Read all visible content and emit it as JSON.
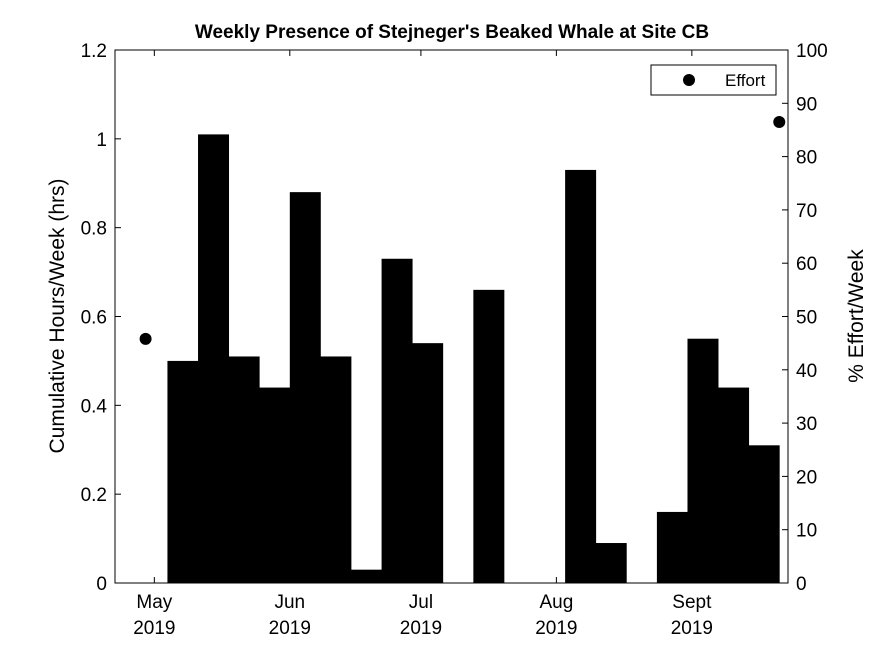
{
  "chart_data": {
    "type": "bar",
    "title": "Weekly Presence of Stejneger's Beaked Whale at Site CB",
    "ylabel_left": "Cumulative Hours/Week (hrs)",
    "ylabel_right": "% Effort/Week",
    "xlim": [
      "2019-04-22",
      "2019-09-23"
    ],
    "ylim_left": [
      0,
      1.2
    ],
    "ylim_right": [
      0,
      100
    ],
    "yticks_left": [
      "0",
      "0.2",
      "0.4",
      "0.6",
      "0.8",
      "1",
      "1.2"
    ],
    "yticks_right": [
      "0",
      "10",
      "20",
      "30",
      "40",
      "50",
      "60",
      "70",
      "80",
      "90",
      "100"
    ],
    "xticks": [
      {
        "date": "2019-05-01",
        "month": "May",
        "year": "2019"
      },
      {
        "date": "2019-06-01",
        "month": "Jun",
        "year": "2019"
      },
      {
        "date": "2019-07-01",
        "month": "Jul",
        "year": "2019"
      },
      {
        "date": "2019-08-01",
        "month": "Aug",
        "year": "2019"
      },
      {
        "date": "2019-09-01",
        "month": "Sept",
        "year": "2019"
      }
    ],
    "bar_width_days": 7,
    "bars": [
      {
        "week_start": "2019-05-04",
        "value": 0.5
      },
      {
        "week_start": "2019-05-11",
        "value": 1.01
      },
      {
        "week_start": "2019-05-18",
        "value": 0.51
      },
      {
        "week_start": "2019-05-25",
        "value": 0.44
      },
      {
        "week_start": "2019-06-01",
        "value": 0.88
      },
      {
        "week_start": "2019-06-08",
        "value": 0.51
      },
      {
        "week_start": "2019-06-15",
        "value": 0.03
      },
      {
        "week_start": "2019-06-22",
        "value": 0.73
      },
      {
        "week_start": "2019-06-29",
        "value": 0.54
      },
      {
        "week_start": "2019-07-06",
        "value": 0
      },
      {
        "week_start": "2019-07-13",
        "value": 0.66
      },
      {
        "week_start": "2019-07-20",
        "value": 0
      },
      {
        "week_start": "2019-07-27",
        "value": 0
      },
      {
        "week_start": "2019-08-03",
        "value": 0.93
      },
      {
        "week_start": "2019-08-10",
        "value": 0.09
      },
      {
        "week_start": "2019-08-17",
        "value": 0
      },
      {
        "week_start": "2019-08-24",
        "value": 0.16
      },
      {
        "week_start": "2019-08-31",
        "value": 0.55
      },
      {
        "week_start": "2019-09-07",
        "value": 0.44
      },
      {
        "week_start": "2019-09-14",
        "value": 0.31
      }
    ],
    "effort_series": {
      "name": "Effort",
      "axis": "right",
      "points": [
        {
          "date": "2019-04-29",
          "value": 45.8
        },
        {
          "date": "2019-09-21",
          "value": 86.5
        }
      ]
    },
    "legend_position": "top-right",
    "grid": false,
    "colors": {
      "bars": "#000000",
      "effort": "#000000",
      "background": "#ffffff"
    }
  }
}
